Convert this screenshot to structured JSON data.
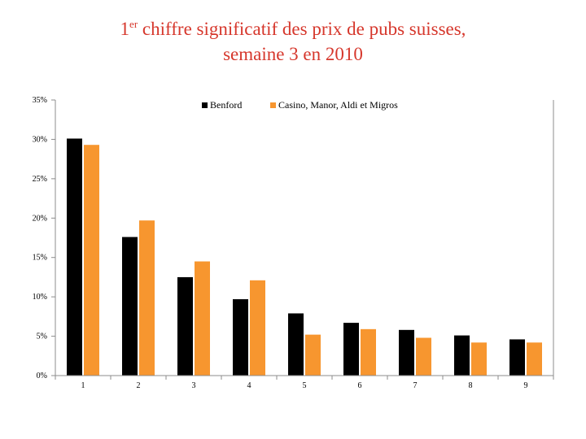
{
  "title": {
    "sup_prefix": "1",
    "sup": "er",
    "line1_rest": " chiffre significatif des prix de pubs suisses,",
    "line2": "semaine 3 en 2010"
  },
  "colors": {
    "title": "#d6372c",
    "benford": "#000000",
    "casino": "#f7962f",
    "axis": "#8c8c8c"
  },
  "chart_data": {
    "type": "bar",
    "categories": [
      "1",
      "2",
      "3",
      "4",
      "5",
      "6",
      "7",
      "8",
      "9"
    ],
    "series": [
      {
        "name": "Benford",
        "values": [
          30.1,
          17.6,
          12.5,
          9.7,
          7.9,
          6.7,
          5.8,
          5.1,
          4.6
        ]
      },
      {
        "name": "Casino, Manor, Aldi et Migros",
        "values": [
          29.3,
          19.7,
          14.5,
          12.1,
          5.2,
          5.9,
          4.8,
          4.2,
          4.2
        ]
      }
    ],
    "ylim": [
      0,
      35
    ],
    "yticks": [
      0,
      5,
      10,
      15,
      20,
      25,
      30,
      35
    ],
    "ytick_labels": [
      "0%",
      "5%",
      "10%",
      "15%",
      "20%",
      "25%",
      "30%",
      "35%"
    ],
    "xlabel": "",
    "ylabel": "",
    "grid": false,
    "legend": "top-center"
  }
}
